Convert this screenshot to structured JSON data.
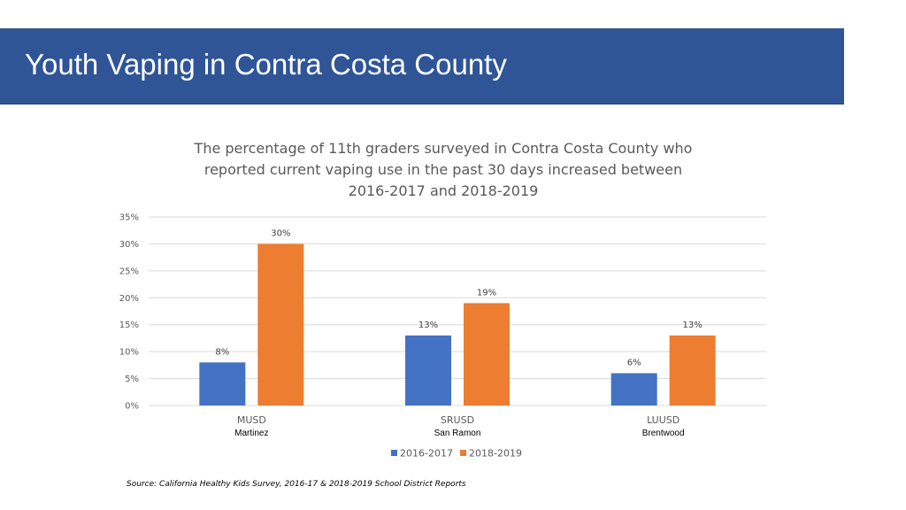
{
  "header": {
    "title": "Youth Vaping in Contra Costa County"
  },
  "colors": {
    "header_bg": "#2f5597",
    "series_1": "#4472c4",
    "series_2": "#ed7d31",
    "grid": "#d9d9d9"
  },
  "chart_data": {
    "type": "bar",
    "title_lines": [
      "The percentage of 11th graders surveyed in Contra Costa County who",
      "reported current vaping use in the past 30 days increased between",
      "2016-2017 and 2018-2019"
    ],
    "categories": [
      "MUSD",
      "SRUSD",
      "LUUSD"
    ],
    "category_sublabels": [
      "Martinez",
      "San Ramon",
      "Brentwood"
    ],
    "series": [
      {
        "name": "2016-2017",
        "values": [
          8,
          13,
          6
        ],
        "labels": [
          "8%",
          "13%",
          "6%"
        ]
      },
      {
        "name": "2018-2019",
        "values": [
          30,
          19,
          13
        ],
        "labels": [
          "30%",
          "19%",
          "13%"
        ]
      }
    ],
    "ylim": [
      0,
      35
    ],
    "yticks": [
      0,
      5,
      10,
      15,
      20,
      25,
      30,
      35
    ],
    "ytick_labels": [
      "0%",
      "5%",
      "10%",
      "15%",
      "20%",
      "25%",
      "30%",
      "35%"
    ],
    "grid": true,
    "legend_position": "bottom-center"
  },
  "source": "Source: California Healthy Kids Survey, 2016-17 & 2018-2019 School District Reports"
}
